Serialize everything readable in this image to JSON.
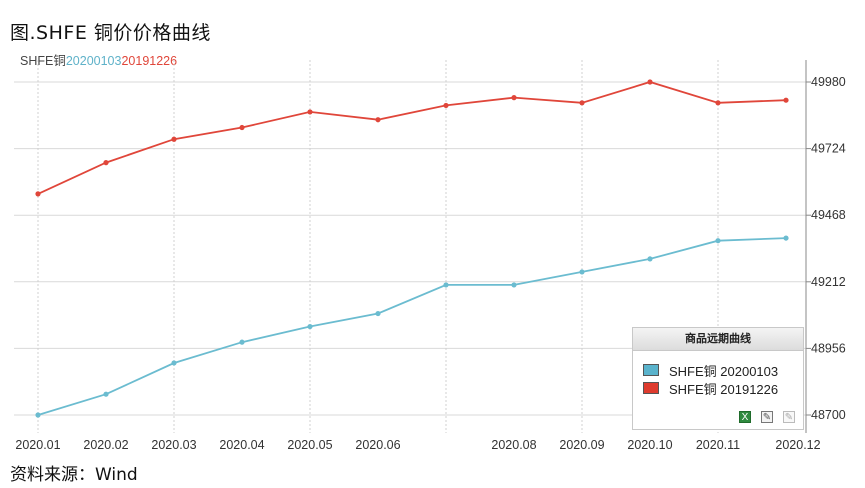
{
  "figure_title": "图.SHFE 铜价价格曲线",
  "top_legend": {
    "label": "SHFE铜",
    "series1": "20200103",
    "series2": "20191226"
  },
  "source": "资料来源：Wind",
  "legend_box": {
    "title": "商品远期曲线",
    "items": [
      {
        "label": "SHFE铜 20200103",
        "color": "#5ab3cc"
      },
      {
        "label": "SHFE铜 20191226",
        "color": "#de3b2e"
      }
    ],
    "tools": [
      "excel-icon",
      "edit-icon",
      "edit-disabled-icon"
    ]
  },
  "chart_data": {
    "type": "line",
    "title": "",
    "xlabel": "",
    "ylabel": "",
    "ylim": [
      48700,
      49980
    ],
    "yticks": [
      48700,
      48956,
      49212,
      49468,
      49724,
      49980
    ],
    "x_domain": [
      2020.0,
      2020.12
    ],
    "xticks": [
      {
        "x": 2020.01,
        "label": "2020.01"
      },
      {
        "x": 2020.02,
        "label": "2020.02"
      },
      {
        "x": 2020.03,
        "label": "2020.03"
      },
      {
        "x": 2020.04,
        "label": "2020.04"
      },
      {
        "x": 2020.05,
        "label": "2020.05"
      },
      {
        "x": 2020.06,
        "label": "2020.06"
      },
      {
        "x": 2020.08,
        "label": "2020.08"
      },
      {
        "x": 2020.09,
        "label": "2020.09"
      },
      {
        "x": 2020.1,
        "label": "2020.10"
      },
      {
        "x": 2020.11,
        "label": "2020.11"
      },
      {
        "x": 2020.12,
        "label": "2020.12"
      }
    ],
    "grid": true,
    "legend_position": "bottom-right",
    "series": [
      {
        "name": "SHFE铜 20200103",
        "color": "#6bbcd0",
        "points": [
          {
            "x": 2020.01,
            "y": 48700
          },
          {
            "x": 2020.02,
            "y": 48780
          },
          {
            "x": 2020.03,
            "y": 48900
          },
          {
            "x": 2020.04,
            "y": 48980
          },
          {
            "x": 2020.05,
            "y": 49040
          },
          {
            "x": 2020.06,
            "y": 49090
          },
          {
            "x": 2020.07,
            "y": 49200
          },
          {
            "x": 2020.08,
            "y": 49200
          },
          {
            "x": 2020.09,
            "y": 49250
          },
          {
            "x": 2020.1,
            "y": 49300
          },
          {
            "x": 2020.11,
            "y": 49370
          },
          {
            "x": 2020.12,
            "y": 49380
          }
        ]
      },
      {
        "name": "SHFE铜 20191226",
        "color": "#e0463a",
        "points": [
          {
            "x": 2020.01,
            "y": 49550
          },
          {
            "x": 2020.02,
            "y": 49670
          },
          {
            "x": 2020.03,
            "y": 49760
          },
          {
            "x": 2020.04,
            "y": 49805
          },
          {
            "x": 2020.05,
            "y": 49865
          },
          {
            "x": 2020.06,
            "y": 49835
          },
          {
            "x": 2020.07,
            "y": 49890
          },
          {
            "x": 2020.08,
            "y": 49920
          },
          {
            "x": 2020.09,
            "y": 49900
          },
          {
            "x": 2020.1,
            "y": 49980
          },
          {
            "x": 2020.11,
            "y": 49900
          },
          {
            "x": 2020.12,
            "y": 49910
          }
        ]
      }
    ]
  }
}
